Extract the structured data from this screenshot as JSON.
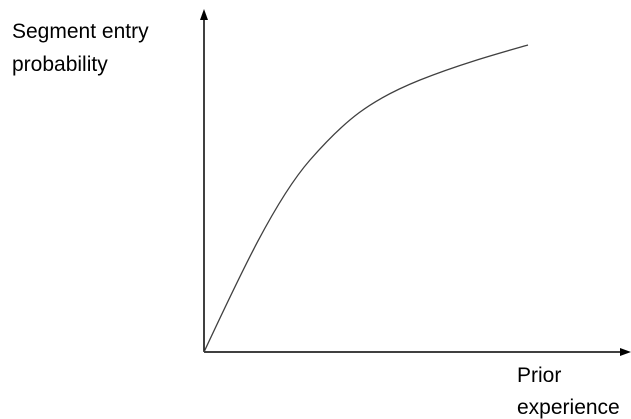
{
  "diagram": {
    "y_axis_label_lines": [
      "Segment entry",
      "probability"
    ],
    "x_axis_label_lines": [
      "Prior",
      "experience"
    ],
    "colors": {
      "axis": "#000000",
      "curve": "#404040",
      "text": "#000000"
    }
  }
}
